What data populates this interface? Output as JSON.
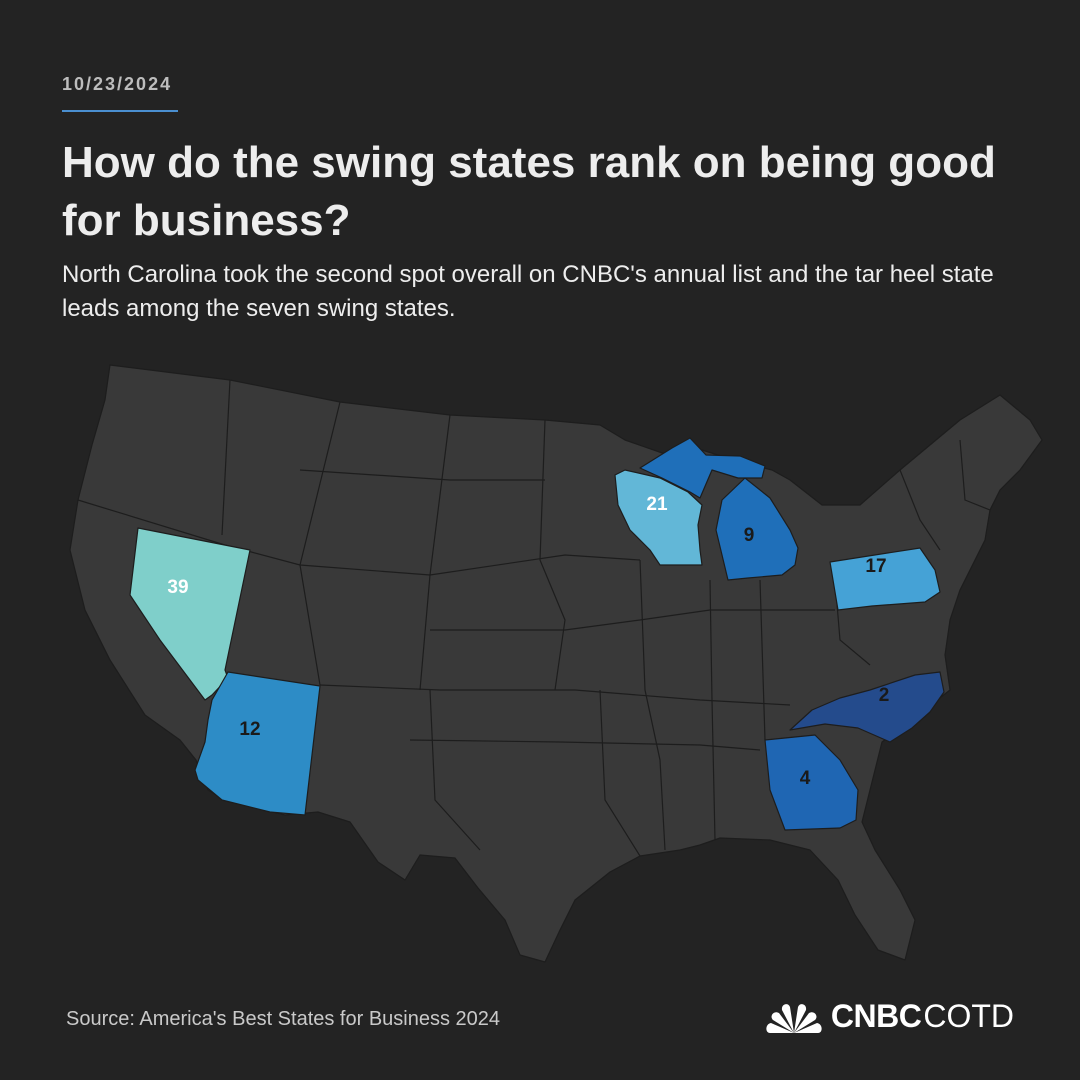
{
  "date": "10/23/2024",
  "title": "How do the swing states rank on being good for business?",
  "subtitle": "North Carolina took the second spot overall on CNBC's annual list and the tar heel state leads among the seven swing states.",
  "source": "Source: America's Best States for Business 2024",
  "brand": {
    "name": "CNBC",
    "suffix": "COTD",
    "logo_icon": "nbc-peacock-icon"
  },
  "colors": {
    "background": "#232323",
    "land": "#393939",
    "accent_rule": "#4a8fd0",
    "rank_2": "#244b8c",
    "rank_4": "#1f66b3",
    "rank_9": "#1f6fb9",
    "rank_12": "#2d8cc6",
    "rank_17": "#45a2d6",
    "rank_21": "#62b7d7",
    "rank_39": "#7fcfca"
  },
  "swing_states": [
    {
      "state": "North Carolina",
      "rank": "2",
      "color": "#244b8c",
      "label_color": "#1a1a1a"
    },
    {
      "state": "Georgia",
      "rank": "4",
      "color": "#1f66b3",
      "label_color": "#1a1a1a"
    },
    {
      "state": "Michigan",
      "rank": "9",
      "color": "#1f6fb9",
      "label_color": "#1a1a1a"
    },
    {
      "state": "Arizona",
      "rank": "12",
      "color": "#2d8cc6",
      "label_color": "#1a1a1a"
    },
    {
      "state": "Pennsylvania",
      "rank": "17",
      "color": "#45a2d6",
      "label_color": "#1a1a1a"
    },
    {
      "state": "Wisconsin",
      "rank": "21",
      "color": "#62b7d7",
      "label_color": "#ffffff"
    },
    {
      "state": "Nevada",
      "rank": "39",
      "color": "#7fcfca",
      "label_color": "#ffffff"
    }
  ]
}
